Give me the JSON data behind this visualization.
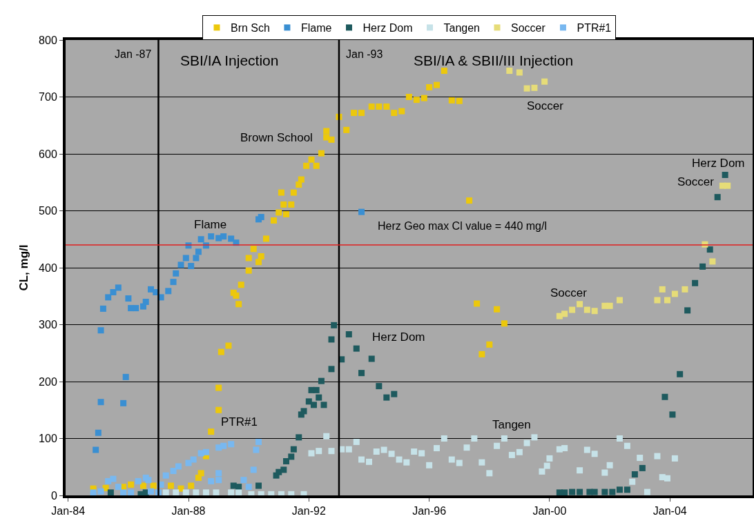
{
  "chart_data": {
    "type": "scatter",
    "ylabel": "CL, mg/l",
    "marker": "square",
    "grid": "y",
    "legend": "top",
    "xlim": [
      "1983-12",
      "2006-10"
    ],
    "xticks": [
      {
        "value": "1984-01",
        "label": "Jan-84"
      },
      {
        "value": "1988-01",
        "label": "Jan-88"
      },
      {
        "value": "1992-01",
        "label": "Jan-92"
      },
      {
        "value": "1996-01",
        "label": "Jan-96"
      },
      {
        "value": "2000-01",
        "label": "Jan-00"
      },
      {
        "value": "2004-01",
        "label": "Jan-04"
      }
    ],
    "ylim": [
      0,
      800
    ],
    "yticks": [
      0,
      100,
      200,
      300,
      400,
      500,
      600,
      700,
      800
    ],
    "series": [
      {
        "name": "Brn Sch",
        "color": "#ecc80c",
        "x": [
          "1984-11",
          "1985-04",
          "1985-11",
          "1986-02",
          "1986-07",
          "1986-11",
          "1987-06",
          "1987-10",
          "1988-02",
          "1988-05",
          "1988-06",
          "1988-08",
          "1988-10",
          "1989-01",
          "1989-01",
          "1989-02",
          "1989-05",
          "1989-07",
          "1989-08",
          "1989-09",
          "1989-10",
          "1990-01",
          "1990-01",
          "1990-03",
          "1990-05",
          "1990-06",
          "1990-08",
          "1990-11",
          "1991-01",
          "1991-02",
          "1991-03",
          "1991-04",
          "1991-06",
          "1991-07",
          "1991-09",
          "1991-10",
          "1991-12",
          "1992-02",
          "1992-04",
          "1992-06",
          "1992-08",
          "1992-08",
          "1992-10",
          "1993-01",
          "1993-04",
          "1993-07",
          "1993-10",
          "1994-02",
          "1994-05",
          "1994-08",
          "1994-11",
          "1995-02",
          "1995-05",
          "1995-08",
          "1995-11",
          "1996-01",
          "1996-04",
          "1996-07",
          "1996-10",
          "1997-01",
          "1997-05",
          "1997-08",
          "1997-10",
          "1998-01",
          "1998-04",
          "1998-07"
        ],
        "values": [
          12,
          13,
          15,
          19,
          17,
          17,
          17,
          12,
          17,
          31,
          39,
          69,
          112,
          150,
          189,
          252,
          263,
          356,
          351,
          336,
          370,
          395,
          417,
          433,
          410,
          420,
          451,
          483,
          497,
          532,
          511,
          494,
          511,
          532,
          546,
          555,
          579,
          590,
          579,
          601,
          640,
          629,
          625,
          665,
          642,
          672,
          672,
          683,
          683,
          683,
          672,
          675,
          700,
          695,
          698,
          717,
          721,
          746,
          694,
          693,
          518,
          337,
          248,
          265,
          327,
          302
        ]
      },
      {
        "name": "Flame",
        "color": "#3a8fd2",
        "x": [
          "1984-12",
          "1985-01",
          "1985-02",
          "1985-02",
          "1985-03",
          "1985-05",
          "1985-07",
          "1985-09",
          "1985-11",
          "1985-12",
          "1986-01",
          "1986-02",
          "1986-04",
          "1986-07",
          "1986-08",
          "1986-10",
          "1986-12",
          "1987-02",
          "1987-05",
          "1987-07",
          "1987-08",
          "1987-10",
          "1987-12",
          "1988-01",
          "1988-02",
          "1988-04",
          "1988-05",
          "1988-06",
          "1988-08",
          "1988-10",
          "1989-01",
          "1989-03",
          "1989-06",
          "1989-08",
          "1990-05",
          "1990-06",
          "1993-10"
        ],
        "values": [
          80,
          110,
          164,
          290,
          328,
          348,
          357,
          365,
          162,
          208,
          346,
          329,
          329,
          332,
          340,
          362,
          357,
          348,
          359,
          375,
          390,
          405,
          417,
          439,
          403,
          417,
          428,
          450,
          439,
          455,
          452,
          455,
          451,
          444,
          485,
          489,
          498
        ]
      },
      {
        "name": "Herz Dom",
        "color": "#1e5a5e",
        "x": [
          "1985-06",
          "1986-06",
          "1986-08",
          "1987-02",
          "1987-04",
          "1989-07",
          "1989-09",
          "1990-05",
          "1990-12",
          "1991-01",
          "1991-03",
          "1991-04",
          "1991-06",
          "1991-07",
          "1991-09",
          "1991-10",
          "1991-11",
          "1992-01",
          "1992-02",
          "1992-03",
          "1992-04",
          "1992-05",
          "1992-06",
          "1992-07",
          "1992-10",
          "1992-10",
          "1992-11",
          "1993-02",
          "1993-05",
          "1993-08",
          "1993-10",
          "1994-02",
          "1994-05",
          "1994-08",
          "1994-11",
          "2000-05",
          "2000-07",
          "2000-10",
          "2001-01",
          "2001-05",
          "2001-07",
          "2001-11",
          "2002-02",
          "2002-05",
          "2002-08",
          "2002-11",
          "2003-02",
          "2003-11",
          "2004-02",
          "2004-05",
          "2004-08",
          "2004-11",
          "2005-02",
          "2005-05",
          "2005-08",
          "2005-11"
        ],
        "values": [
          5,
          2,
          5,
          null,
          null,
          17,
          15,
          17,
          35,
          41,
          45,
          60,
          68,
          81,
          102,
          142,
          148,
          165,
          185,
          159,
          185,
          172,
          201,
          159,
          222,
          274,
          299,
          239,
          283,
          258,
          215,
          240,
          192,
          172,
          178,
          5,
          5,
          6,
          6,
          6,
          6,
          6,
          6,
          10,
          10,
          37,
          48,
          173,
          142,
          213,
          325,
          373,
          402,
          432,
          524,
          563
        ]
      },
      {
        "name": "Tangen",
        "color": "#c6e2e8",
        "x": [
          "1987-04",
          "1987-08",
          "1987-12",
          "1988-04",
          "1988-08",
          "1988-12",
          "1989-06",
          "1989-09",
          "1990-02",
          "1990-06",
          "1990-10",
          "1991-02",
          "1991-06",
          "1991-11",
          "1992-02",
          "1992-05",
          "1992-08",
          "1992-10",
          "1993-02",
          "1993-05",
          "1993-08",
          "1993-10",
          "1994-01",
          "1994-04",
          "1994-07",
          "1994-10",
          "1995-01",
          "1995-04",
          "1995-07",
          "1995-10",
          "1996-01",
          "1996-04",
          "1996-07",
          "1996-10",
          "1997-01",
          "1997-04",
          "1997-07",
          "1997-10",
          "1998-01",
          "1998-04",
          "1998-07",
          "1998-10",
          "1999-01",
          "1999-04",
          "1999-07",
          "1999-10",
          "1999-12",
          "2000-01",
          "2000-05",
          "2000-07",
          "2001-01",
          "2001-04",
          "2001-07",
          "2001-11",
          "2002-01",
          "2002-05",
          "2002-08",
          "2002-10",
          "2003-01",
          "2003-04",
          "2003-08",
          "2003-10",
          "2003-12",
          "2004-03"
        ],
        "values": [
          5,
          5,
          5,
          5,
          5,
          5,
          5,
          5,
          2,
          2,
          2,
          2,
          2,
          2,
          74,
          78,
          104,
          78,
          81,
          81,
          94,
          63,
          59,
          77,
          80,
          73,
          63,
          58,
          77,
          74,
          53,
          83,
          100,
          63,
          57,
          84,
          100,
          58,
          39,
          87,
          100,
          71,
          76,
          92,
          102,
          42,
          52,
          65,
          81,
          83,
          44,
          80,
          73,
          40,
          53,
          100,
          87,
          24,
          66,
          6,
          69,
          32,
          30,
          65
        ]
      },
      {
        "name": "Soccer",
        "color": "#e6dc78",
        "x": [
          "1998-09",
          "1999-01",
          "1999-04",
          "1999-07",
          "1999-11",
          "2000-05",
          "2000-07",
          "2000-10",
          "2001-01",
          "2001-04",
          "2001-07",
          "2001-11",
          "2002-01",
          "2002-05",
          "2003-08",
          "2003-10",
          "2003-12",
          "2004-03",
          "2004-07",
          "2005-03",
          "2005-06",
          "2005-10",
          "2005-12"
        ],
        "values": [
          746,
          743,
          715,
          716,
          727,
          315,
          319,
          326,
          336,
          326,
          324,
          333,
          333,
          343,
          343,
          362,
          343,
          354,
          362,
          441,
          411,
          544,
          544
        ]
      },
      {
        "name": "PTR#1",
        "color": "#78b8f0",
        "x": [
          "1984-11",
          "1985-02",
          "1985-05",
          "1985-07",
          "1985-09",
          "1985-11",
          "1986-02",
          "1986-05",
          "1986-08",
          "1986-09",
          "1986-10",
          "1987-01",
          "1987-02",
          "1987-04",
          "1987-07",
          "1987-09",
          "1988-01",
          "1988-03",
          "1988-06",
          "1988-08",
          "1988-10",
          "1989-01",
          "1989-01",
          "1989-01",
          "1989-03",
          "1989-06",
          "1989-11",
          "1990-01",
          "1990-03",
          "1990-04",
          "1990-05"
        ],
        "values": [
          5,
          7,
          25,
          29,
          15,
          5,
          5,
          25,
          31,
          27,
          7,
          5,
          19,
          35,
          43,
          51,
          57,
          63,
          74,
          76,
          25,
          84,
          27,
          39,
          87,
          90,
          27,
          15,
          45,
          80,
          94
        ]
      }
    ],
    "ref_lines": [
      {
        "axis": "x",
        "value": "1987-01",
        "label": "Jan -87",
        "color": "#000000"
      },
      {
        "axis": "x",
        "value": "1993-01",
        "label": "Jan -93",
        "color": "#000000"
      },
      {
        "axis": "y",
        "value": 440,
        "label": "Herz Geo max Cl value = 440 mg/l",
        "color": "#e02020"
      }
    ],
    "annotations": [
      "SBI/IA Injection",
      "SBI/IA & SBII/III Injection",
      "Brown School",
      "Flame",
      "PTR#1",
      "Herz Dom",
      "Tangen",
      "Soccer",
      "Soccer",
      "Soccer",
      "Herz Dom"
    ]
  }
}
